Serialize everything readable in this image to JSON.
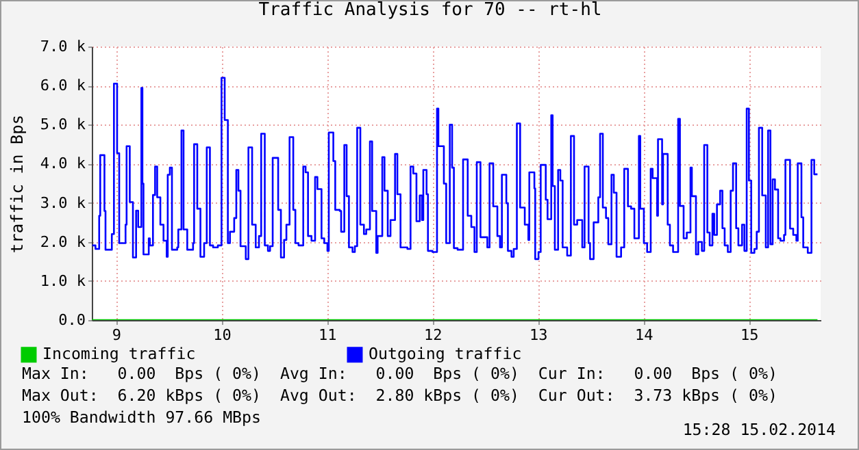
{
  "chart_data": {
    "type": "step",
    "title": "Traffic Analysis for 70 -- rt-hl",
    "ylabel": "traffic in Bps",
    "xlim": [
      8.77,
      15.68
    ],
    "xticks": [
      9,
      10,
      11,
      12,
      13,
      14,
      15
    ],
    "ylim": [
      0,
      7
    ],
    "yticks": [
      {
        "value": 0,
        "label": "0.0"
      },
      {
        "value": 1,
        "label": "1.0 k"
      },
      {
        "value": 2,
        "label": "2.0 k"
      },
      {
        "value": 3,
        "label": "3.0 k"
      },
      {
        "value": 4,
        "label": "4.0 k"
      },
      {
        "value": 5,
        "label": "5.0 k"
      },
      {
        "value": 6,
        "label": "6.0 k"
      },
      {
        "value": 7,
        "label": "7.0 k"
      }
    ],
    "grid": true,
    "legend": "bottom left",
    "series": [
      {
        "name": "Incoming traffic",
        "color": "#00cc00",
        "x": [
          8.77,
          15.65
        ],
        "values": [
          0,
          0
        ]
      },
      {
        "name": "Outgoing traffic",
        "color": "#0000ff",
        "x": [
          8.775,
          8.805,
          8.84,
          8.85,
          8.89,
          8.9,
          8.96,
          8.98,
          9.01,
          9.03,
          9.09,
          9.1,
          9.13,
          9.16,
          9.19,
          9.21,
          9.24,
          9.25,
          9.26,
          9.31,
          9.32,
          9.35,
          9.37,
          9.39,
          9.42,
          9.45,
          9.48,
          9.49,
          9.51,
          9.53,
          9.58,
          9.59,
          9.62,
          9.64,
          9.675,
          9.73,
          9.74,
          9.77,
          9.8,
          9.835,
          9.86,
          9.89,
          9.92,
          9.965,
          10.0,
          10.03,
          10.06,
          10.08,
          10.12,
          10.14,
          10.16,
          10.18,
          10.23,
          10.255,
          10.29,
          10.324,
          10.355,
          10.376,
          10.41,
          10.44,
          10.46,
          10.485,
          10.537,
          10.563,
          10.593,
          10.615,
          10.645,
          10.68,
          10.7,
          10.73,
          10.775,
          10.797,
          10.82,
          10.853,
          10.887,
          10.909,
          10.948,
          10.974,
          11.004,
          11.017,
          11.06,
          11.078,
          11.121,
          11.134,
          11.164,
          11.186,
          11.208,
          11.242,
          11.264,
          11.286,
          11.316,
          11.35,
          11.372,
          11.407,
          11.428,
          11.467,
          11.48,
          11.524,
          11.545,
          11.576,
          11.602,
          11.645,
          11.667,
          11.697,
          11.762,
          11.792,
          11.818,
          11.848,
          11.879,
          11.9,
          11.913,
          11.944,
          11.957,
          12.0,
          12.043,
          12.056,
          12.108,
          12.13,
          12.164,
          12.186,
          12.203,
          12.238,
          12.29,
          12.334,
          12.368,
          12.398,
          12.42,
          12.455,
          12.52,
          12.541,
          12.576,
          12.615,
          12.64,
          12.658,
          12.7,
          12.715,
          12.749,
          12.77,
          12.8,
          12.831,
          12.875,
          12.909,
          12.918,
          12.966,
          12.974,
          13.005,
          13.026,
          13.074,
          13.091,
          13.126,
          13.139,
          13.16,
          13.191,
          13.212,
          13.234,
          13.277,
          13.312,
          13.342,
          13.372,
          13.42,
          13.442,
          13.48,
          13.494,
          13.528,
          13.572,
          13.589,
          13.615,
          13.645,
          13.667,
          13.697,
          13.719,
          13.745,
          13.788,
          13.818,
          13.853,
          13.883,
          13.914,
          13.957,
          13.97,
          14.004,
          14.035,
          14.069,
          14.087,
          14.13,
          14.138,
          14.177,
          14.186,
          14.23,
          14.251,
          14.281,
          14.329,
          14.346,
          14.381,
          14.411,
          14.446,
          14.459,
          14.498,
          14.52,
          14.554,
          14.576,
          14.606,
          14.628,
          14.654,
          14.671,
          14.697,
          14.727,
          14.749,
          14.77,
          14.8,
          14.827,
          14.849,
          14.879,
          14.9,
          14.935,
          14.957,
          14.979,
          15.0,
          15.022,
          15.052,
          15.074,
          15.095,
          15.126,
          15.16,
          15.182,
          15.204,
          15.225,
          15.247,
          15.277,
          15.299,
          15.333,
          15.346,
          15.39,
          15.42,
          15.45,
          15.463,
          15.498,
          15.515,
          15.558,
          15.593,
          15.619,
          15.65
        ],
        "values": [
          1.91,
          1.82,
          2.67,
          4.22,
          2.79,
          1.8,
          2.2,
          6.05,
          4.27,
          1.97,
          2.44,
          4.45,
          3.02,
          1.6,
          2.8,
          2.38,
          5.94,
          3.49,
          1.68,
          2.09,
          1.91,
          3.2,
          3.93,
          3.14,
          2.44,
          2.03,
          1.62,
          3.72,
          3.9,
          1.8,
          1.86,
          2.32,
          4.85,
          2.32,
          1.8,
          1.97,
          4.5,
          2.85,
          1.62,
          1.97,
          4.42,
          1.91,
          1.86,
          1.91,
          6.2,
          5.12,
          1.97,
          2.26,
          2.61,
          3.84,
          3.31,
          1.89,
          1.56,
          4.42,
          2.44,
          1.86,
          2.15,
          4.77,
          1.91,
          1.77,
          1.89,
          4.15,
          2.82,
          1.6,
          2.05,
          2.44,
          4.68,
          2.82,
          1.97,
          1.91,
          3.93,
          3.78,
          2.15,
          2.03,
          3.66,
          3.35,
          2.09,
          1.97,
          1.77,
          4.8,
          4.07,
          2.82,
          2.79,
          2.26,
          4.48,
          3.17,
          1.86,
          1.74,
          1.89,
          4.92,
          2.44,
          2.2,
          2.32,
          4.57,
          2.79,
          1.72,
          2.15,
          4.17,
          3.31,
          2.15,
          2.56,
          4.25,
          3.22,
          1.86,
          1.82,
          3.93,
          3.75,
          2.53,
          3.19,
          2.56,
          3.84,
          3.22,
          1.77,
          1.74,
          5.41,
          4.45,
          3.49,
          1.97,
          5.0,
          3.9,
          1.84,
          1.8,
          4.11,
          2.67,
          2.38,
          1.74,
          4.04,
          2.12,
          1.86,
          4.01,
          2.91,
          2.15,
          1.86,
          3.72,
          2.99,
          1.77,
          1.62,
          1.82,
          5.03,
          2.88,
          2.44,
          2.05,
          3.78,
          3.37,
          1.56,
          1.74,
          3.97,
          3.08,
          2.58,
          5.24,
          3.43,
          1.8,
          3.84,
          3.57,
          1.86,
          1.65,
          4.71,
          2.44,
          2.56,
          1.86,
          3.93,
          1.97,
          1.56,
          2.5,
          3.14,
          4.77,
          2.88,
          2.61,
          1.94,
          3.72,
          3.26,
          1.62,
          1.86,
          3.87,
          2.91,
          2.85,
          2.09,
          4.71,
          2.85,
          1.97,
          1.74,
          3.87,
          3.63,
          2.67,
          4.63,
          2.96,
          4.25,
          2.44,
          1.91,
          1.74,
          5.15,
          2.92,
          2.09,
          2.24,
          3.9,
          3.17,
          1.68,
          2.0,
          1.77,
          4.48,
          2.24,
          1.91,
          2.72,
          2.18,
          2.96,
          3.31,
          2.35,
          1.91,
          1.74,
          3.31,
          4.01,
          2.35,
          1.91,
          2.44,
          1.77,
          5.41,
          3.57,
          1.72,
          1.82,
          2.26,
          4.92,
          3.19,
          1.86,
          4.85,
          1.94,
          3.6,
          3.34,
          2.09,
          2.03,
          2.18,
          4.1,
          2.34,
          2.18,
          2.03,
          4.01,
          2.63,
          1.86,
          1.72,
          4.1,
          3.73,
          3.73
        ]
      }
    ],
    "annotations": [
      "Max In:   0.00  Bps ( 0%)  Avg In:   0.00  Bps ( 0%)  Cur In:   0.00  Bps ( 0%)",
      "Max Out:  6.20 kBps ( 0%)  Avg Out:  2.80 kBps ( 0%)  Cur Out:  3.73 kBps ( 0%)",
      "100% Bandwidth 97.66 MBps",
      "15:28 15.02.2014"
    ]
  }
}
